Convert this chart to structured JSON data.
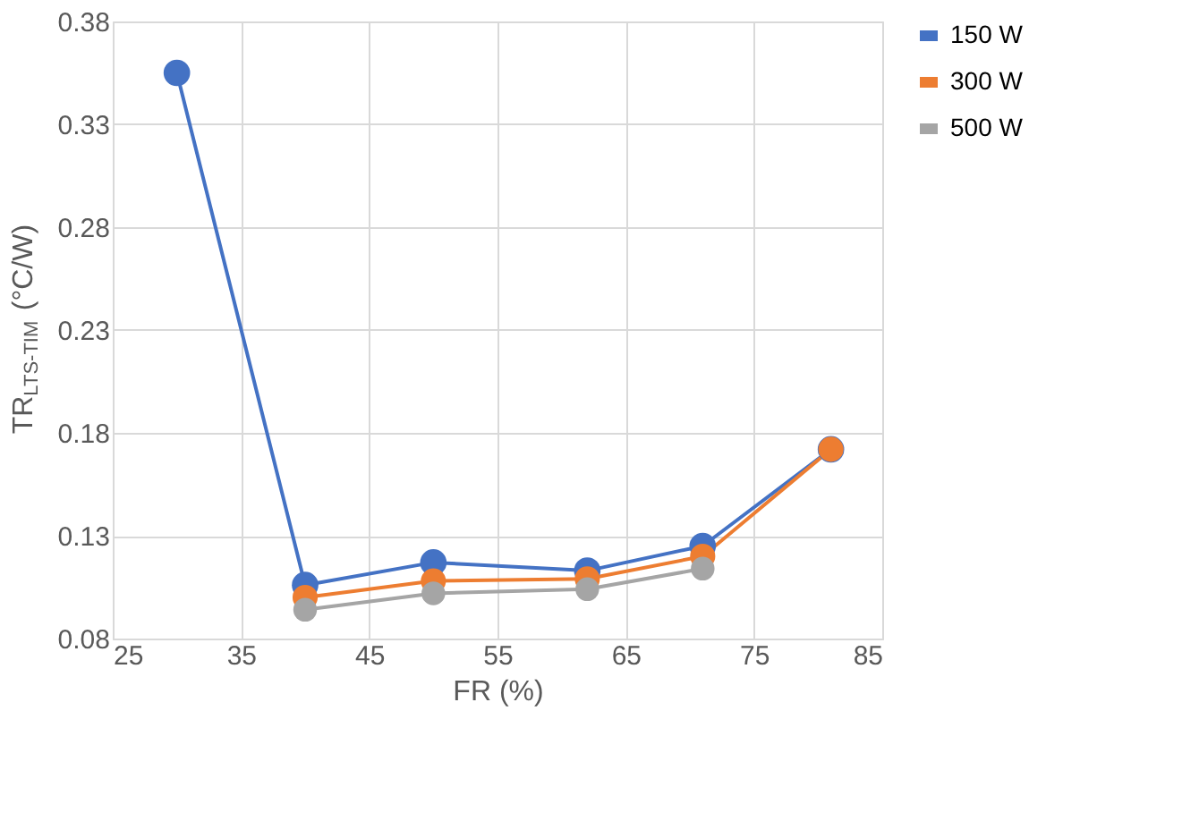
{
  "chart_data": {
    "type": "line",
    "xlabel": "FR (%)",
    "ylabel": "TR$_{LTS-TIM}$ (°C/W)",
    "xlim": [
      25,
      85
    ],
    "xticks": [
      25,
      35,
      45,
      55,
      65,
      75,
      85
    ],
    "ylim": [
      0.08,
      0.38
    ],
    "yticks": [
      0.08,
      0.13,
      0.18,
      0.23,
      0.28,
      0.33,
      0.38
    ],
    "grid": true,
    "legend": "right",
    "marker": "circle",
    "line_style": "solid",
    "series": [
      {
        "name": "150 W",
        "color": "#4472c4",
        "x": [
          30,
          40,
          50,
          62,
          71,
          81
        ],
        "values": [
          0.355,
          0.106,
          0.117,
          0.113,
          0.125,
          0.172
        ]
      },
      {
        "name": "300 W",
        "color": "#ed7d31",
        "x": [
          40,
          50,
          62,
          71,
          81
        ],
        "values": [
          0.1,
          0.108,
          0.109,
          0.12,
          0.172
        ]
      },
      {
        "name": "500 W",
        "color": "#a5a5a5",
        "x": [
          40,
          50,
          62,
          71
        ],
        "values": [
          0.094,
          0.102,
          0.104,
          0.114
        ]
      }
    ]
  }
}
